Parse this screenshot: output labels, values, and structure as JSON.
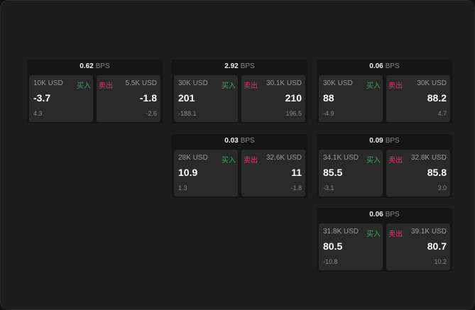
{
  "unit": "BPS",
  "buy_label": "买入",
  "sell_label": "卖出",
  "colors": {
    "buy": "#2eaa5a",
    "sell": "#e0356a"
  },
  "cards": [
    {
      "spread": "0.62",
      "bid_size": "10K USD",
      "bid": "-3.7",
      "bid_change": "4.3",
      "ask_size": "5.5K USD",
      "ask": "-1.8",
      "ask_change": "-2.6"
    },
    {
      "spread": "2.92",
      "bid_size": "30K USD",
      "bid": "201",
      "bid_change": "-188.1",
      "ask_size": "30.1K USD",
      "ask": "210",
      "ask_change": "196.5"
    },
    {
      "spread": "0.06",
      "bid_size": "30K USD",
      "bid": "88",
      "bid_change": "-4.9",
      "ask_size": "30K USD",
      "ask": "88.2",
      "ask_change": "4.7"
    },
    {
      "spread": "0.03",
      "bid_size": "28K USD",
      "bid": "10.9",
      "bid_change": "1.3",
      "ask_size": "32.6K USD",
      "ask": "11",
      "ask_change": "-1.8"
    },
    {
      "spread": "0.09",
      "bid_size": "34.1K USD",
      "bid": "85.5",
      "bid_change": "-3.1",
      "ask_size": "32.8K USD",
      "ask": "85.8",
      "ask_change": "3.0"
    },
    {
      "spread": "0.06",
      "bid_size": "31.8K USD",
      "bid": "80.5",
      "bid_change": "-10.8",
      "ask_size": "39.1K USD",
      "ask": "80.7",
      "ask_change": "10.2"
    }
  ]
}
